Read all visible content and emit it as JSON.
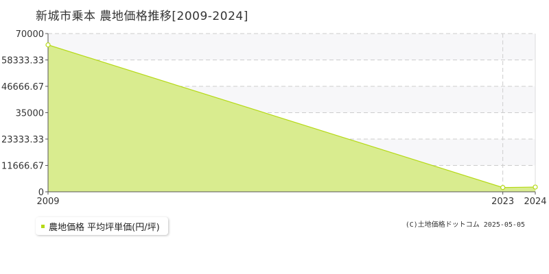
{
  "header": {
    "title": "新城市乗本 農地価格推移[2009-2024]"
  },
  "chart_data": {
    "type": "area",
    "title": "新城市乗本 農地価格推移[2009-2024]",
    "xlabel": "",
    "ylabel": "",
    "x": [
      2009,
      2023,
      2024
    ],
    "x_ticks": [
      "2009",
      "2023",
      "2024"
    ],
    "y_ticks": [
      "0",
      "11666.67",
      "23333.33",
      "35000",
      "46666.67",
      "58333.33",
      "70000"
    ],
    "ylim": [
      0,
      70000
    ],
    "grid": true,
    "legend_position": "bottom-left",
    "series": [
      {
        "name": "農地価格 平均坪単価(円/坪)",
        "values": [
          65000,
          1900,
          2100
        ],
        "color": "#b5d916",
        "fill_color": "#d9ec8f"
      }
    ]
  },
  "legend": {
    "label": "農地価格 平均坪単価(円/坪)"
  },
  "footer": {
    "copyright": "(C)土地価格ドットコム 2025-05-05"
  }
}
